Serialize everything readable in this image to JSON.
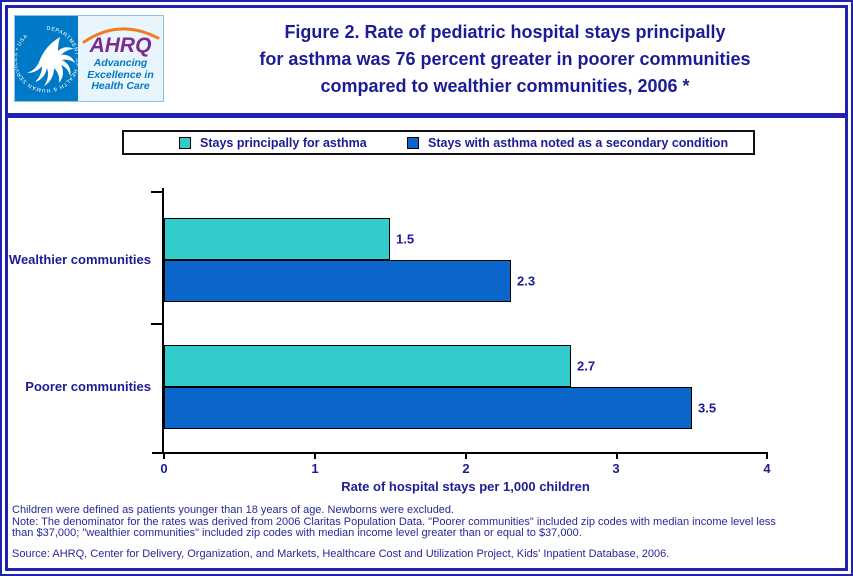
{
  "page": {
    "background": "#ffffff",
    "border_color": "#2222b2",
    "text_navy": "#1c1c96"
  },
  "header": {
    "title_lines": [
      "Figure 2. Rate of pediatric hospital stays principally",
      "for asthma was 76 percent greater in poorer communities",
      "compared to wealthier communities, 2006 *"
    ],
    "logo": {
      "hhs_ring_text": "DEPARTMENT OF HEALTH & HUMAN SERVICES • USA",
      "ahrq_acronym": "AHRQ",
      "tagline": "Advancing Excellence in Health Care",
      "tagline_lines": [
        "Advancing",
        "Excellence in",
        "Health Care"
      ],
      "hhs_blue": "#0079c6",
      "ahrq_purple": "#7d2b8b",
      "arc_orange": "#f47b20"
    }
  },
  "legend": {
    "items": [
      {
        "label": "Stays principally for asthma",
        "color": "#33cccc"
      },
      {
        "label": "Stays with asthma noted as a secondary condition",
        "color": "#0b66cc"
      }
    ]
  },
  "chart_data": {
    "type": "bar",
    "orientation": "horizontal",
    "title": "Figure 2. Rate of pediatric hospital stays principally for asthma was 76 percent greater in poorer communities compared to wealthier communities, 2006 *",
    "categories": [
      "Wealthier communities",
      "Poorer communities"
    ],
    "series": [
      {
        "name": "Stays principally for asthma",
        "color": "#33cccc",
        "values": [
          1.5,
          2.7
        ]
      },
      {
        "name": "Stays with asthma noted as a secondary condition",
        "color": "#0b66cc",
        "values": [
          2.3,
          3.5
        ]
      }
    ],
    "xlabel": "Rate of hospital stays per 1,000 children",
    "ylabel": "",
    "xlim": [
      0,
      4
    ],
    "xticks": [
      "0",
      "1",
      "2",
      "3",
      "4"
    ],
    "grid": false,
    "legend_position": "top",
    "value_labels": true
  },
  "footnotes": {
    "line1": "Children were defined as patients younger than 18 years of age. Newborns were excluded.",
    "note_line1": "Note: The denominator for the rates was derived from 2006 Claritas Population Data. \"Poorer communities\" included zip codes with median income level less",
    "note_line2": "than $37,000; \"wealthier communities\" included zip codes with median income level greater than or equal to $37,000.",
    "source": "Source: AHRQ, Center for Delivery, Organization, and Markets, Healthcare Cost and Utilization Project, Kids' Inpatient Database, 2006."
  }
}
